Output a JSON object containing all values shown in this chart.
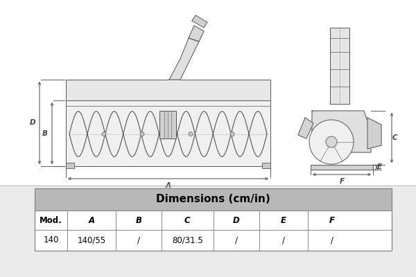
{
  "bg_color": "#ebebeb",
  "diagram_bg": "#ffffff",
  "table_title": "Dimensions (cm/in)",
  "table_header": [
    "Mod.",
    "A",
    "B",
    "C",
    "D",
    "E",
    "F"
  ],
  "table_row": [
    "140",
    "140/55",
    "/",
    "80/31.5",
    "/",
    "/",
    "/"
  ],
  "header_bg": "#b8b8b8",
  "border_color": "#888888",
  "sk": "#555555",
  "ann": "#444444",
  "lw": 0.7
}
